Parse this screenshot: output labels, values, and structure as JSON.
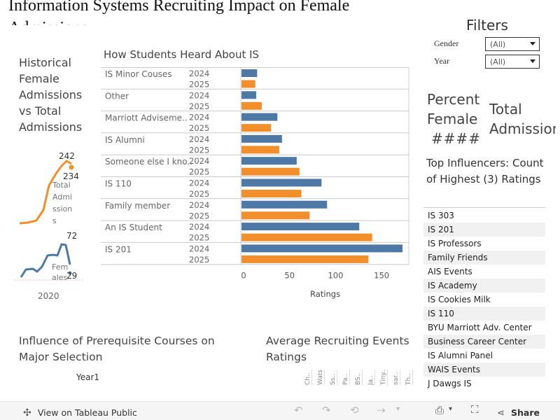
{
  "title": "Information Systems Recruiting Impact on Female Admissions",
  "filters": {
    "title": "Filters",
    "gender": {
      "label": "Gender",
      "value": "(All)"
    },
    "year": {
      "label": "Year",
      "value": "(All)"
    }
  },
  "historical": {
    "title": "Historical Female Admissions vs Total Admissions",
    "total_label": "Total Admissions",
    "females_label": "Females",
    "total_high": "242",
    "total_end": "234",
    "female_high": "72",
    "female_end": "29",
    "year": "2020",
    "colors": {
      "total": "#f28e2b",
      "female": "#4e79a7"
    }
  },
  "how_heard": {
    "title": "How Students Heard About IS",
    "axis_label": "Ratings",
    "colors": {
      "y2024": "#4e79a7",
      "y2025": "#f28e2b"
    }
  },
  "chart_data": {
    "type": "bar",
    "orientation": "horizontal",
    "title": "How Students Heard About IS",
    "xlabel": "Ratings",
    "xlim": [
      0,
      175
    ],
    "ticks": [
      "0",
      "50",
      "100",
      "150"
    ],
    "categories": [
      "IS Minor Couses",
      "Other",
      "Marriott Adviseme..",
      "IS Alumni",
      "Someone else I kno..",
      "IS 110",
      "Family member",
      "An IS Student",
      "IS 201"
    ],
    "series": [
      {
        "name": "2024",
        "values": [
          17,
          16,
          39,
          44,
          60,
          87,
          93,
          128,
          175
        ]
      },
      {
        "name": "2025",
        "values": [
          15,
          22,
          32,
          41,
          63,
          65,
          74,
          142,
          138
        ]
      }
    ]
  },
  "percent_female": {
    "label": "Percent Female",
    "value": "####"
  },
  "total_admissions": {
    "label": "Total Admissions"
  },
  "top_influencers": {
    "title": "Top Influencers: Count of Highest (3) Ratings",
    "items": [
      "IS 303",
      "IS 201",
      "IS Professors",
      "Family Friends",
      "AIS Events",
      "IS Academy",
      "IS Cookies Milk",
      "IS 110",
      "BYU Marriott Adv. Center",
      "Business Career Center",
      "IS Alumni Panel",
      "WAIS Events",
      "J Dawgs IS"
    ]
  },
  "prereq": {
    "title": "Influence of Prerequisite Courses on Major Selection",
    "col_label": "Year1"
  },
  "recruiting": {
    "title": "Average Recruiting Events Ratings",
    "columns": [
      "Ch..",
      "Wats..",
      "Ss..",
      "Pa..",
      "BS..",
      "Ja..",
      "Tiny..",
      "sar..",
      "Th.."
    ]
  },
  "toolbar": {
    "view_label": "View on Tableau Public",
    "share_label": "Share"
  }
}
